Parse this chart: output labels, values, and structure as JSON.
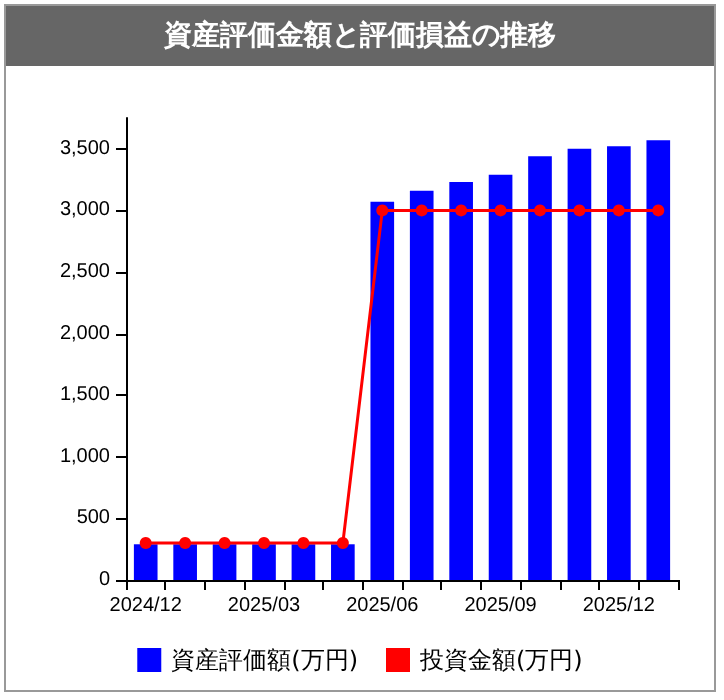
{
  "chart_data": {
    "type": "bar",
    "title": "資産評価金額と評価損益の推移",
    "categories": [
      "2024/12",
      null,
      null,
      "2025/03",
      null,
      null,
      "2025/06",
      null,
      null,
      "2025/09",
      null,
      null,
      "2025/12",
      null
    ],
    "series": [
      {
        "name": "資産評価額(万円)",
        "color": "#0000ff",
        "values": [
          290,
          290,
          290,
          290,
          290,
          290,
          3070,
          3160,
          3230,
          3290,
          3440,
          3500,
          3520,
          3570
        ]
      },
      {
        "name": "投資金額(万円)",
        "type": "line",
        "color": "#ff0000",
        "values": [
          300,
          300,
          300,
          300,
          300,
          300,
          3000,
          3000,
          3000,
          3000,
          3000,
          3000,
          3000,
          3000
        ]
      }
    ],
    "ylim": [
      0,
      3750
    ],
    "yticks": [
      0,
      500,
      {
        "value": 1000,
        "label": "1,000"
      },
      {
        "value": 1500,
        "label": "1,500"
      },
      {
        "value": 2000,
        "label": "2,000"
      },
      {
        "value": 2500,
        "label": "2,500"
      },
      {
        "value": 3000,
        "label": "3,000"
      },
      {
        "value": 3500,
        "label": "3,500"
      }
    ],
    "grid": false,
    "legend": "bottom",
    "marker": "circle"
  }
}
